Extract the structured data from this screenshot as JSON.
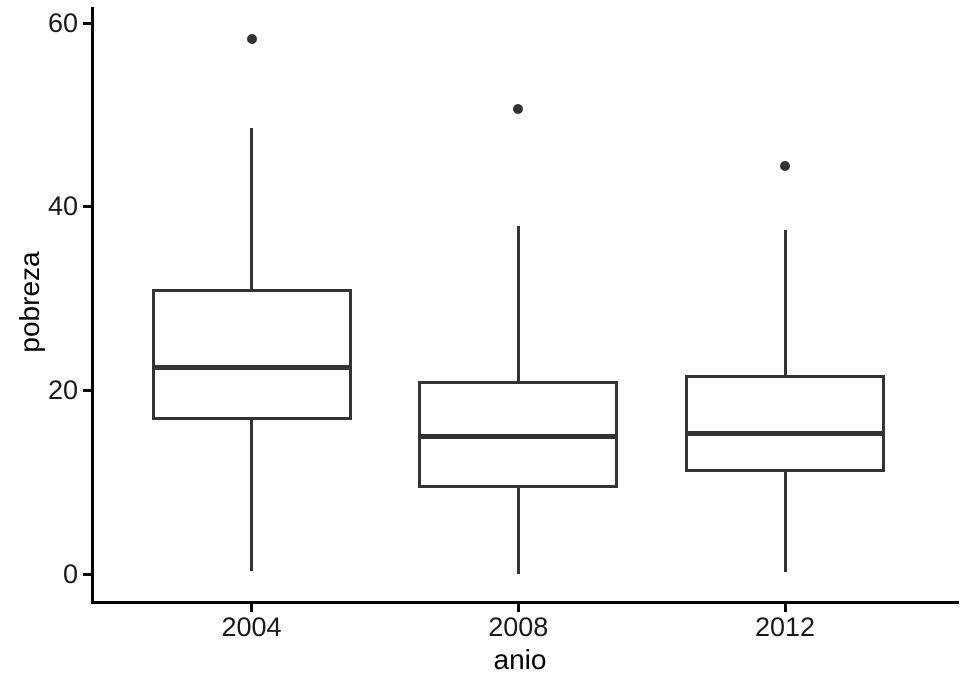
{
  "chart_data": {
    "type": "boxplot",
    "title": "",
    "xlabel": "anio",
    "ylabel": "pobreza",
    "categories": [
      "2004",
      "2008",
      "2012"
    ],
    "yticks": [
      "0",
      "20",
      "40",
      "60"
    ],
    "ytick_values": [
      0,
      20,
      40,
      60
    ],
    "ylim": [
      -3,
      62.5
    ],
    "grid": "off",
    "legend": "none",
    "series": [
      {
        "category": "2004",
        "whisker_low": 0.4,
        "q1": 16.8,
        "median": 22.5,
        "q3": 31.1,
        "whisker_high": 48.6,
        "outliers": [
          58.3
        ]
      },
      {
        "category": "2008",
        "whisker_low": 0.1,
        "q1": 9.4,
        "median": 15.0,
        "q3": 21.1,
        "whisker_high": 37.9,
        "outliers": [
          50.7
        ]
      },
      {
        "category": "2012",
        "whisker_low": 0.3,
        "q1": 11.2,
        "median": 15.3,
        "q3": 21.7,
        "whisker_high": 37.5,
        "outliers": [
          44.4
        ]
      }
    ],
    "colors": {
      "box_stroke": "#333333",
      "box_fill": "#ffffff",
      "axis": "#000000",
      "tick_text": "#1a1a1a",
      "title_text": "#000000",
      "background": "#ffffff"
    }
  }
}
